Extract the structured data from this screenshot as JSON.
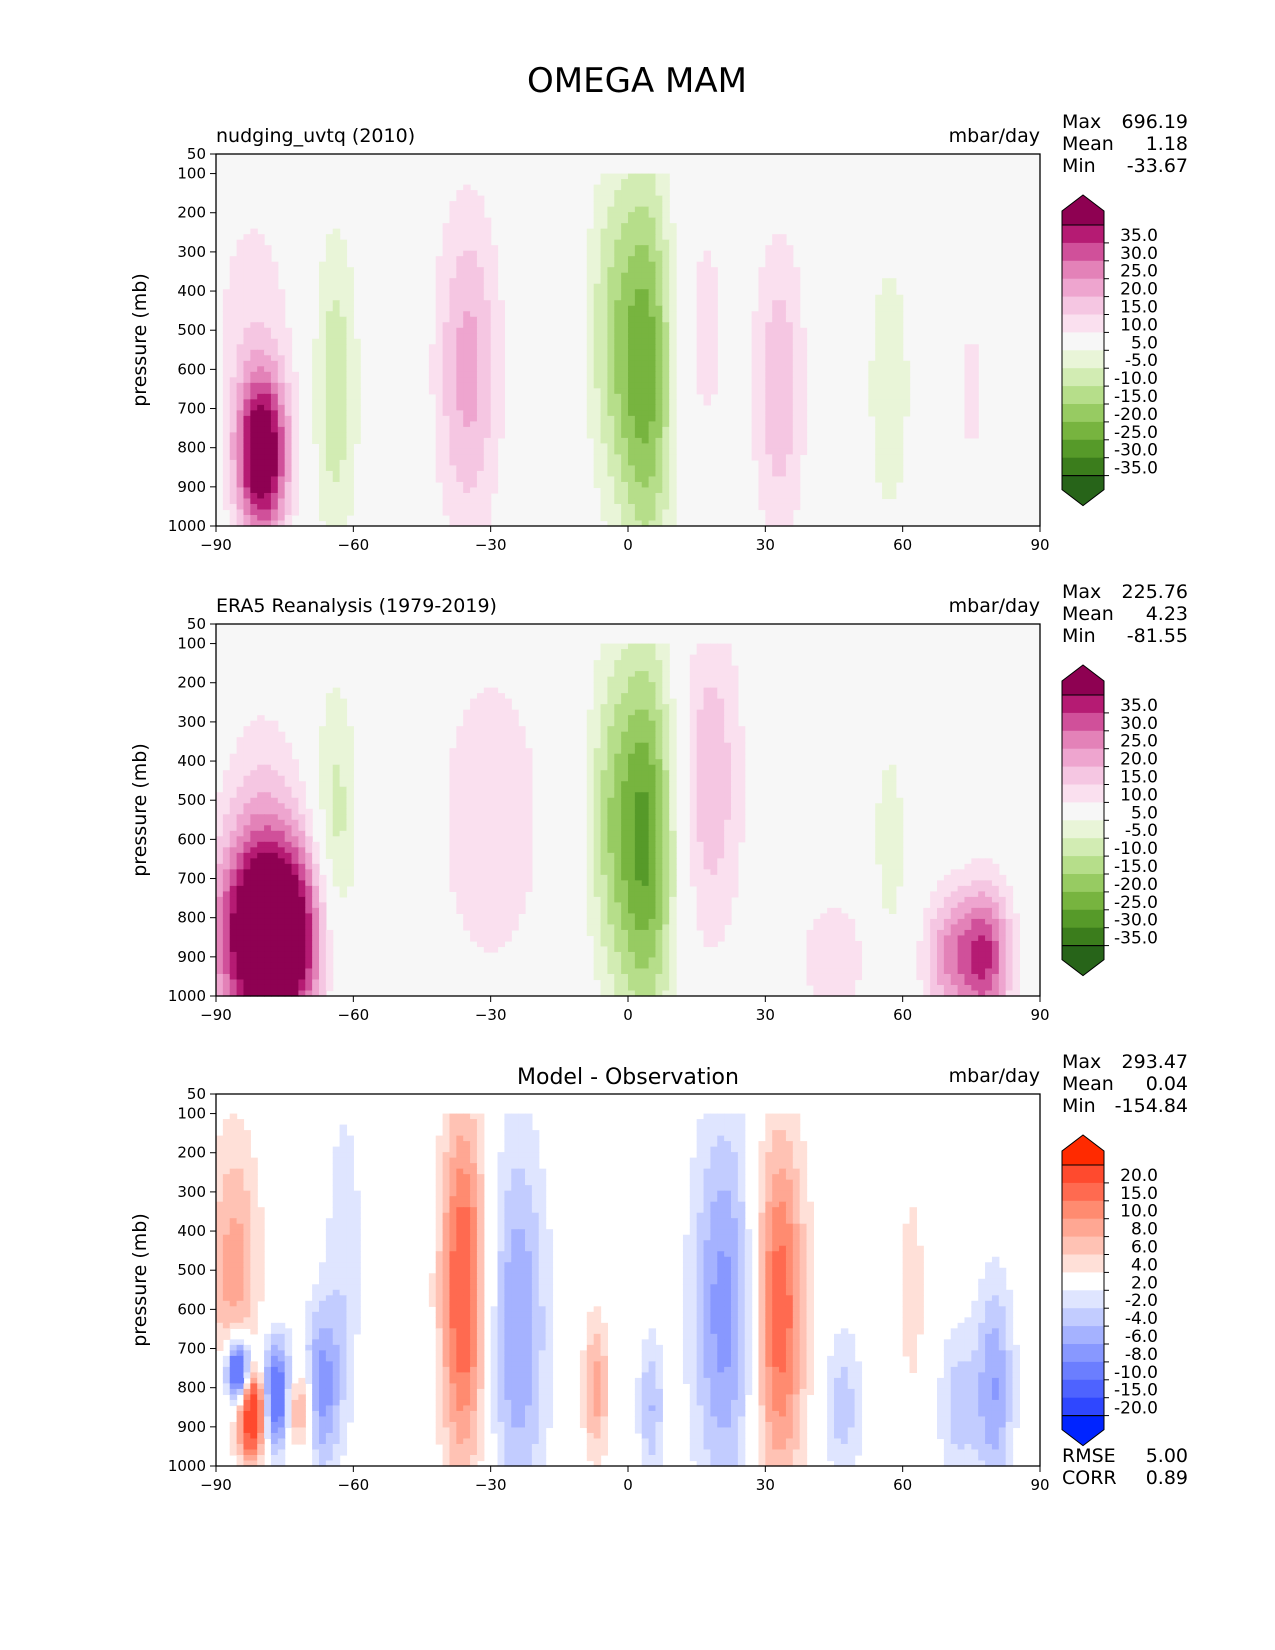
{
  "figure_title": "OMEGA MAM",
  "chart_data": [
    {
      "type": "heatmap",
      "panel": "model",
      "title": "nudging_uvtq (2010)",
      "units": "mbar/day",
      "ylabel": "pressure (mb)",
      "xlabel": "",
      "x_ticks": [
        "−90",
        "−60",
        "−30",
        "0",
        "30",
        "60",
        "90"
      ],
      "y_ticks": [
        "50",
        "100",
        "200",
        "300",
        "400",
        "500",
        "600",
        "700",
        "800",
        "900",
        "1000"
      ],
      "xlim": [
        -90,
        90
      ],
      "ylim": [
        1000,
        50
      ],
      "stats": [
        {
          "label": "Max",
          "value": "696.19"
        },
        {
          "label": "Mean",
          "value": "1.18"
        },
        {
          "label": "Min",
          "value": "-33.67"
        }
      ],
      "colorbar": {
        "labels": [
          "35.0",
          "30.0",
          "25.0",
          "20.0",
          "15.0",
          "10.0",
          "5.0",
          "-5.0",
          "-10.0",
          "-15.0",
          "-20.0",
          "-25.0",
          "-30.0",
          "-35.0"
        ],
        "colors": [
          "#8e0152",
          "#b51b73",
          "#d0509a",
          "#e382b8",
          "#eea5cf",
          "#f5c6e2",
          "#fae0ef",
          "#f7f7f7",
          "#e9f5d8",
          "#d2ecb3",
          "#b6de8a",
          "#97cb62",
          "#77b43f",
          "#569a29",
          "#3b7d1c",
          "#276419"
        ]
      },
      "features": [
        {
          "lat": -80,
          "p": 820,
          "value": 45,
          "wlat": 4,
          "wp": 150
        },
        {
          "lat": -82,
          "p": 450,
          "value": 7,
          "wlat": 7,
          "wp": 250
        },
        {
          "lat": -64,
          "p": 650,
          "value": -14,
          "wlat": 3.5,
          "wp": 290
        },
        {
          "lat": -35,
          "p": 600,
          "value": 17,
          "wlat": 5,
          "wp": 300
        },
        {
          "lat": -20,
          "p": 220,
          "value": 4,
          "wlat": 3,
          "wp": 70
        },
        {
          "lat": 4,
          "p": 600,
          "value": -28,
          "wlat": 4.5,
          "wp": 350
        },
        {
          "lat": -4,
          "p": 500,
          "value": -12,
          "wlat": 4,
          "wp": 300
        },
        {
          "lat": 16,
          "p": 500,
          "value": 7,
          "wlat": 5,
          "wp": 280
        },
        {
          "lat": 33,
          "p": 650,
          "value": 14,
          "wlat": 4,
          "wp": 280
        },
        {
          "lat": 57,
          "p": 650,
          "value": -8,
          "wlat": 4,
          "wp": 300
        },
        {
          "lat": 75,
          "p": 650,
          "value": 6,
          "wlat": 2,
          "wp": 250
        }
      ]
    },
    {
      "type": "heatmap",
      "panel": "observation",
      "title": "ERA5 Reanalysis (1979-2019)",
      "units": "mbar/day",
      "ylabel": "pressure (mb)",
      "xlabel": "",
      "x_ticks": [
        "−90",
        "−60",
        "−30",
        "0",
        "30",
        "60",
        "90"
      ],
      "y_ticks": [
        "50",
        "100",
        "200",
        "300",
        "400",
        "500",
        "600",
        "700",
        "800",
        "900",
        "1000"
      ],
      "xlim": [
        -90,
        90
      ],
      "ylim": [
        1000,
        50
      ],
      "stats": [
        {
          "label": "Max",
          "value": "225.76"
        },
        {
          "label": "Mean",
          "value": "4.23"
        },
        {
          "label": "Min",
          "value": "-81.55"
        }
      ],
      "colorbar": {
        "labels": [
          "35.0",
          "30.0",
          "25.0",
          "20.0",
          "15.0",
          "10.0",
          "5.0",
          "-5.0",
          "-10.0",
          "-15.0",
          "-20.0",
          "-25.0",
          "-30.0",
          "-35.0"
        ],
        "colors": [
          "#8e0152",
          "#b51b73",
          "#d0509a",
          "#e382b8",
          "#eea5cf",
          "#f5c6e2",
          "#fae0ef",
          "#f7f7f7",
          "#e9f5d8",
          "#d2ecb3",
          "#b6de8a",
          "#97cb62",
          "#77b43f",
          "#569a29",
          "#3b7d1c",
          "#276419"
        ]
      },
      "features": [
        {
          "lat": -78,
          "p": 850,
          "value": 60,
          "wlat": 8,
          "wp": 180
        },
        {
          "lat": -80,
          "p": 500,
          "value": 8,
          "wlat": 6,
          "wp": 200
        },
        {
          "lat": -64,
          "p": 650,
          "value": -15,
          "wlat": 3.5,
          "wp": 300
        },
        {
          "lat": -30,
          "p": 550,
          "value": 8,
          "wlat": 10,
          "wp": 350
        },
        {
          "lat": 4,
          "p": 600,
          "value": -30,
          "wlat": 4.5,
          "wp": 350
        },
        {
          "lat": -4,
          "p": 550,
          "value": -14,
          "wlat": 4,
          "wp": 300
        },
        {
          "lat": 18,
          "p": 450,
          "value": 14,
          "wlat": 5,
          "wp": 300
        },
        {
          "lat": 45,
          "p": 900,
          "value": 7,
          "wlat": 8,
          "wp": 150
        },
        {
          "lat": 57,
          "p": 650,
          "value": -8,
          "wlat": 3,
          "wp": 250
        },
        {
          "lat": 78,
          "p": 900,
          "value": 30,
          "wlat": 4,
          "wp": 130
        },
        {
          "lat": 70,
          "p": 900,
          "value": 18,
          "wlat": 4,
          "wp": 120
        }
      ]
    },
    {
      "type": "heatmap",
      "panel": "difference",
      "title": "Model - Observation",
      "units": "mbar/day",
      "ylabel": "pressure (mb)",
      "xlabel": "",
      "x_ticks": [
        "−90",
        "−60",
        "−30",
        "0",
        "30",
        "60",
        "90"
      ],
      "y_ticks": [
        "50",
        "100",
        "200",
        "300",
        "400",
        "500",
        "600",
        "700",
        "800",
        "900",
        "1000"
      ],
      "xlim": [
        -90,
        90
      ],
      "ylim": [
        1000,
        50
      ],
      "stats": [
        {
          "label": "Max",
          "value": "293.47"
        },
        {
          "label": "Mean",
          "value": "0.04"
        },
        {
          "label": "Min",
          "value": "-154.84"
        }
      ],
      "metrics": [
        {
          "label": "RMSE",
          "value": "5.00"
        },
        {
          "label": "CORR",
          "value": "0.89"
        }
      ],
      "colorbar": {
        "labels": [
          "20.0",
          "15.0",
          "10.0",
          "8.0",
          "6.0",
          "4.0",
          "2.0",
          "-2.0",
          "-4.0",
          "-6.0",
          "-8.0",
          "-10.0",
          "-15.0",
          "-20.0"
        ],
        "colors": [
          "#ff2a00",
          "#ff4a2e",
          "#ff6a50",
          "#ff8b70",
          "#ffa793",
          "#ffc2b4",
          "#ffe0d8",
          "#ffffff",
          "#dfe5ff",
          "#c2ccff",
          "#a5b2ff",
          "#8898ff",
          "#6b7eff",
          "#4e63ff",
          "#2f47ff",
          "#0024ff"
        ]
      },
      "features": [
        {
          "lat": -86,
          "p": 500,
          "value": 7,
          "wlat": 4,
          "wp": 250
        },
        {
          "lat": -85,
          "p": 760,
          "value": -22,
          "wlat": 2,
          "wp": 60
        },
        {
          "lat": -82,
          "p": 860,
          "value": 22,
          "wlat": 2,
          "wp": 80
        },
        {
          "lat": -77,
          "p": 820,
          "value": -15,
          "wlat": 2.5,
          "wp": 100
        },
        {
          "lat": -72,
          "p": 850,
          "value": 10,
          "wlat": 2,
          "wp": 80
        },
        {
          "lat": -67,
          "p": 800,
          "value": -9,
          "wlat": 3,
          "wp": 150
        },
        {
          "lat": -62,
          "p": 450,
          "value": -3.5,
          "wlat": 3,
          "wp": 300
        },
        {
          "lat": -36,
          "p": 550,
          "value": 13,
          "wlat": 3.5,
          "wp": 320
        },
        {
          "lat": -24,
          "p": 650,
          "value": -8,
          "wlat": 4.5,
          "wp": 350
        },
        {
          "lat": -7,
          "p": 800,
          "value": 7,
          "wlat": 2,
          "wp": 130
        },
        {
          "lat": 5,
          "p": 850,
          "value": -6,
          "wlat": 2,
          "wp": 130
        },
        {
          "lat": 21,
          "p": 600,
          "value": -9,
          "wlat": 5,
          "wp": 350
        },
        {
          "lat": 33,
          "p": 600,
          "value": 12,
          "wlat": 4,
          "wp": 320
        },
        {
          "lat": 47,
          "p": 850,
          "value": -5,
          "wlat": 3,
          "wp": 150
        },
        {
          "lat": 62,
          "p": 550,
          "value": 3.5,
          "wlat": 2,
          "wp": 200
        },
        {
          "lat": 80,
          "p": 800,
          "value": -8,
          "wlat": 3,
          "wp": 200
        },
        {
          "lat": 72,
          "p": 850,
          "value": -5,
          "wlat": 3,
          "wp": 150
        }
      ]
    }
  ]
}
